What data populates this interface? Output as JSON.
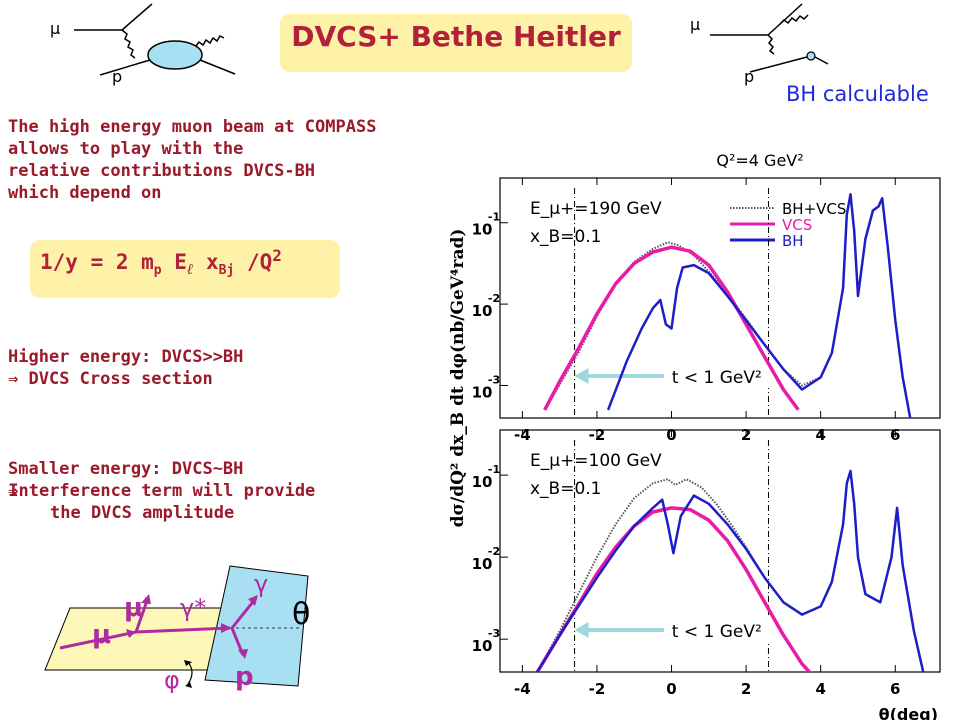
{
  "title": "DVCS+ Bethe Heitler",
  "feynman_left": {
    "muon_label": "μ",
    "proton_label": "p"
  },
  "feynman_right": {
    "muon_label": "μ",
    "proton_label": "p",
    "caption": "BH calculable"
  },
  "intro_lines": [
    "The high energy muon beam at COMPASS",
    "allows to play with the",
    "relative contributions DVCS-BH",
    "which depend on"
  ],
  "formula": {
    "lhs": "1/y = 2 m",
    "sub1": "p",
    "mid1": " E",
    "ell": "ℓ",
    "mid2": " x",
    "sub2": "Bj",
    "mid3": " /Q",
    "sup": "2"
  },
  "higher_energy": {
    "line1": "Higher energy: DVCS>>BH",
    "arrow": "⇒",
    "line2": " DVCS Cross section"
  },
  "smaller_energy": {
    "line1": "Smaller energy: DVCS~BH",
    "arrow": "⇒",
    "line2": "Interference term will provide",
    "line3": "the DVCS amplitude"
  },
  "kinematics_labels": {
    "mu_in": "μ",
    "mu_out": "μ'",
    "gamma_star": "γ*",
    "gamma": "γ",
    "proton": "p",
    "phi": "φ",
    "theta": "θ"
  },
  "colors": {
    "bh_vcs": "#555555",
    "vcs": "#e81ca8",
    "bh": "#1e1ec8",
    "arrow": "#9fd8dc",
    "kin_arrow": "#b02aa0"
  },
  "chart_data": [
    {
      "type": "line",
      "title": "Q²=4 GeV²",
      "ylabel": "dσ/dQ² dx_B dt dφ(nb/GeV⁴rad)",
      "xlabel": "",
      "xlim": [
        -4.6,
        7.2
      ],
      "x_ticks": [
        -4,
        -2,
        0,
        2,
        4,
        6
      ],
      "x_tick_labels": [
        "-4",
        "-2",
        "0",
        "2",
        "4",
        "6"
      ],
      "y_scale": "log",
      "y_tick_exponents": [
        -1,
        -2,
        -3
      ],
      "y_tick_base": "10",
      "annotations": [
        "E_μ+=190 GeV",
        "x_B=0.1"
      ],
      "t_cut_label": "t < 1 GeV²",
      "t_cut_lines_x": [
        -2.6,
        2.6
      ],
      "legend": {
        "position": "top-right",
        "entries": [
          "BH+VCS",
          "VCS",
          "BH"
        ]
      },
      "series": [
        {
          "name": "BH+VCS",
          "style": "dotted",
          "x": [
            -3.4,
            -2.5,
            -2,
            -1.5,
            -1,
            -0.5,
            -0.1,
            0.2,
            0.6,
            1,
            1.5,
            2,
            2.5,
            3,
            3.5,
            4,
            4.3,
            4.6,
            4.7,
            4.8,
            4.9,
            5,
            5.2,
            5.4,
            5.55,
            5.65,
            5.8,
            6,
            6.2,
            6.4
          ],
          "y": [
            -3.3,
            -2.6,
            -2.15,
            -1.75,
            -1.48,
            -1.32,
            -1.24,
            -1.28,
            -1.4,
            -1.6,
            -1.88,
            -2.18,
            -2.5,
            -2.8,
            -3.0,
            -2.9,
            -2.6,
            -1.8,
            -0.9,
            -0.65,
            -1.1,
            -1.9,
            -1.2,
            -0.85,
            -0.8,
            -0.7,
            -1.3,
            -2.2,
            -2.9,
            -3.4
          ]
        },
        {
          "name": "VCS",
          "x": [
            -3.4,
            -3,
            -2.5,
            -2,
            -1.5,
            -1,
            -0.5,
            0,
            0.5,
            1,
            1.5,
            2,
            2.5,
            3,
            3.4
          ],
          "y": [
            -3.3,
            -2.95,
            -2.55,
            -2.12,
            -1.75,
            -1.5,
            -1.36,
            -1.3,
            -1.35,
            -1.52,
            -1.85,
            -2.25,
            -2.65,
            -3.05,
            -3.3
          ]
        },
        {
          "name": "BH",
          "x": [
            -1.7,
            -1.2,
            -0.8,
            -0.5,
            -0.3,
            -0.15,
            0,
            0.15,
            0.3,
            0.6,
            1,
            1.5,
            2,
            2.5,
            3,
            3.5,
            4,
            4.3,
            4.6,
            4.7,
            4.8,
            4.9,
            5,
            5.2,
            5.4,
            5.55,
            5.65,
            5.8,
            6,
            6.2,
            6.4
          ],
          "y": [
            -3.3,
            -2.7,
            -2.3,
            -2.05,
            -1.95,
            -2.25,
            -2.3,
            -1.8,
            -1.55,
            -1.52,
            -1.62,
            -1.9,
            -2.2,
            -2.5,
            -2.8,
            -3.05,
            -2.9,
            -2.6,
            -1.8,
            -0.9,
            -0.65,
            -1.1,
            -1.9,
            -1.2,
            -0.85,
            -0.8,
            -0.7,
            -1.3,
            -2.2,
            -2.9,
            -3.4
          ]
        }
      ]
    },
    {
      "type": "line",
      "title": "",
      "ylabel": "dσ/dQ² dx_B dt dφ(nb/GeV⁴rad)",
      "xlabel": "θ(deg)",
      "xlim": [
        -4.6,
        7.2
      ],
      "x_ticks": [
        -4,
        -2,
        0,
        2,
        4,
        6
      ],
      "x_tick_labels": [
        "-4",
        "-2",
        "0",
        "2",
        "4",
        "6"
      ],
      "y_scale": "log",
      "y_tick_exponents": [
        -1,
        -2,
        -3
      ],
      "y_tick_base": "10",
      "annotations": [
        "E_μ+=100 GeV",
        "x_B=0.1"
      ],
      "t_cut_label": "t < 1 GeV²",
      "t_cut_lines_x": [
        -2.6,
        2.6
      ],
      "series": [
        {
          "name": "BH+VCS",
          "style": "dotted",
          "x": [
            -3.6,
            -3,
            -2.5,
            -2,
            -1.5,
            -1,
            -0.5,
            -0.1,
            0.1,
            0.4,
            0.8,
            1.2,
            1.6,
            2,
            2.5,
            3,
            3.5,
            4,
            4.3,
            4.6,
            4.7,
            4.8,
            4.9,
            5,
            5.2,
            5.6,
            5.9,
            6.05,
            6.2,
            6.5,
            6.8
          ],
          "y": [
            -3.4,
            -2.9,
            -2.45,
            -2.0,
            -1.6,
            -1.28,
            -1.1,
            -1.05,
            -1.12,
            -1.05,
            -1.15,
            -1.35,
            -1.6,
            -1.88,
            -2.25,
            -2.55,
            -2.7,
            -2.6,
            -2.3,
            -1.6,
            -1.1,
            -0.95,
            -1.35,
            -2.0,
            -2.45,
            -2.55,
            -2.0,
            -1.4,
            -2.1,
            -2.9,
            -3.5
          ]
        },
        {
          "name": "VCS",
          "x": [
            -3.6,
            -3,
            -2.5,
            -2,
            -1.5,
            -1,
            -0.5,
            0,
            0.5,
            1,
            1.5,
            2,
            2.5,
            3,
            3.5,
            3.9
          ],
          "y": [
            -3.4,
            -2.95,
            -2.58,
            -2.2,
            -1.88,
            -1.62,
            -1.45,
            -1.4,
            -1.42,
            -1.55,
            -1.8,
            -2.15,
            -2.55,
            -2.95,
            -3.3,
            -3.5
          ]
        },
        {
          "name": "BH",
          "x": [
            -3.6,
            -3,
            -2.5,
            -2,
            -1.5,
            -1,
            -0.5,
            -0.25,
            -0.1,
            0.05,
            0.25,
            0.6,
            1,
            1.5,
            2,
            2.5,
            3,
            3.5,
            4,
            4.3,
            4.6,
            4.7,
            4.8,
            4.9,
            5,
            5.2,
            5.6,
            5.9,
            6.05,
            6.2,
            6.5,
            6.8
          ],
          "y": [
            -3.4,
            -2.95,
            -2.6,
            -2.25,
            -1.92,
            -1.62,
            -1.4,
            -1.3,
            -1.6,
            -1.95,
            -1.5,
            -1.25,
            -1.35,
            -1.6,
            -1.9,
            -2.25,
            -2.55,
            -2.7,
            -2.6,
            -2.3,
            -1.6,
            -1.1,
            -0.95,
            -1.35,
            -2.0,
            -2.45,
            -2.55,
            -2.0,
            -1.4,
            -2.1,
            -2.9,
            -3.5
          ]
        }
      ]
    }
  ]
}
